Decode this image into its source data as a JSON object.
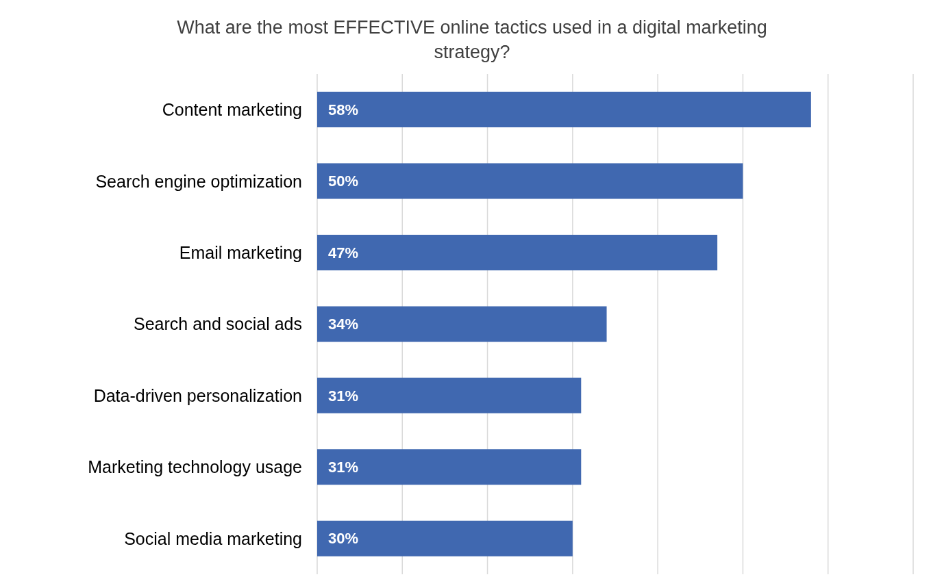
{
  "chart_data": {
    "type": "bar",
    "orientation": "horizontal",
    "title": "What are the most EFFECTIVE online tactics used in a digital marketing strategy?",
    "categories": [
      "Content marketing",
      "Search engine optimization",
      "Email marketing",
      "Search and social ads",
      "Data-driven personalization",
      "Marketing technology usage",
      "Social media marketing"
    ],
    "values": [
      58,
      50,
      47,
      34,
      31,
      31,
      30
    ],
    "value_labels": [
      "58%",
      "50%",
      "47%",
      "34%",
      "31%",
      "31%",
      "30%"
    ],
    "color": "#4068b0",
    "xlim": [
      0,
      70
    ],
    "xticks": [
      {
        "value": 0,
        "label": null
      },
      {
        "value": 10,
        "label": null
      },
      {
        "value": 20,
        "label": null
      },
      {
        "value": 30,
        "label": null
      },
      {
        "value": 40,
        "label": null
      },
      {
        "value": 50,
        "label": null
      },
      {
        "value": 60,
        "label": null
      },
      {
        "value": 70,
        "label": null
      }
    ],
    "grid": "x",
    "tick_labels": "y",
    "legend": false
  }
}
